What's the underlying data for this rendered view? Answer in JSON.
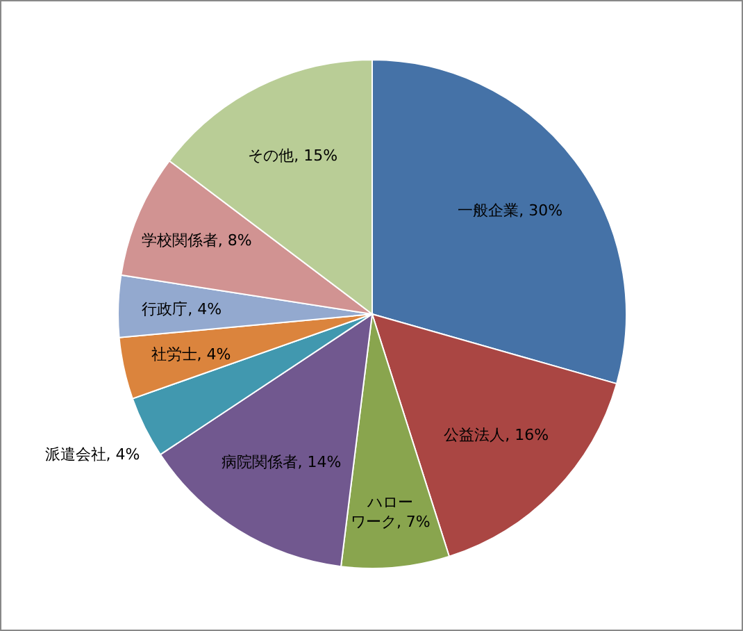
{
  "chart_data": {
    "type": "pie",
    "categories": [
      "一般企業",
      "公益法人",
      "ハローワーク",
      "病院関係者",
      "派遣会社",
      "社労士",
      "行政庁",
      "学校関係者",
      "その他"
    ],
    "values": [
      30,
      16,
      7,
      14,
      4,
      4,
      4,
      8,
      15
    ],
    "value_labels": [
      "30%",
      "16%",
      "7%",
      "14%",
      "4%",
      "4%",
      "4%",
      "8%",
      "15%"
    ],
    "colors": [
      "#4572a7",
      "#aa4643",
      "#89a54e",
      "#71588f",
      "#4198af",
      "#db843d",
      "#93a9cf",
      "#d19392",
      "#b9cd96"
    ]
  }
}
